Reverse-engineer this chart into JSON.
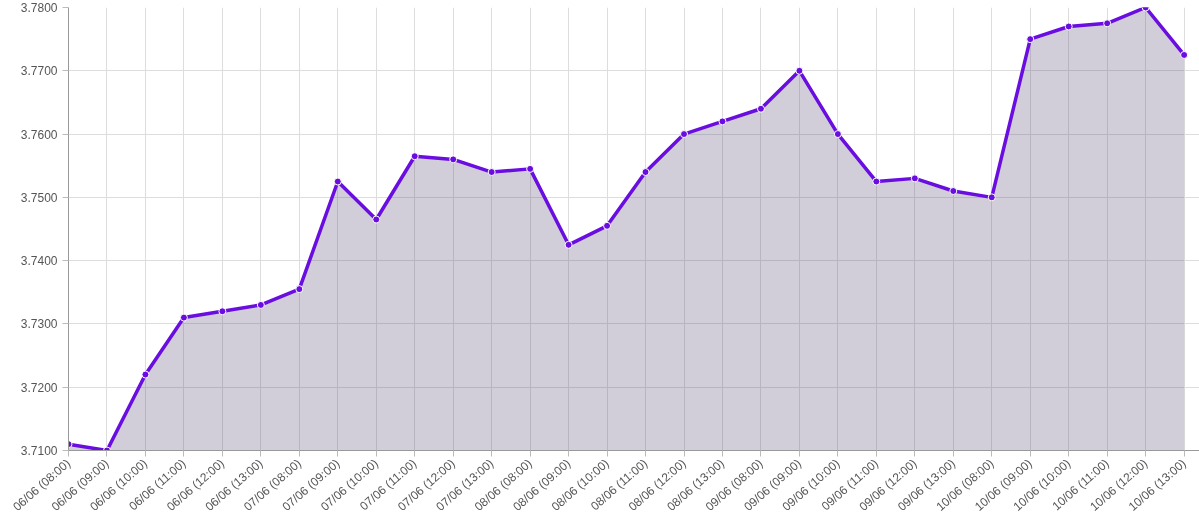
{
  "chart_data": {
    "type": "area",
    "categories": [
      "06/06 (08:00)",
      "06/06 (09:00)",
      "06/06 (10:00)",
      "06/06 (11:00)",
      "06/06 (12:00)",
      "06/06 (13:00)",
      "07/06 (08:00)",
      "07/06 (09:00)",
      "07/06 (10:00)",
      "07/06 (11:00)",
      "07/06 (12:00)",
      "07/06 (13:00)",
      "08/06 (08:00)",
      "08/06 (09:00)",
      "08/06 (10:00)",
      "08/06 (11:00)",
      "08/06 (12:00)",
      "08/06 (13:00)",
      "09/06 (08:00)",
      "09/06 (09:00)",
      "09/06 (10:00)",
      "09/06 (11:00)",
      "09/06 (12:00)",
      "09/06 (13:00)",
      "10/06 (08:00)",
      "10/06 (09:00)",
      "10/06 (10:00)",
      "10/06 (11:00)",
      "10/06 (12:00)",
      "10/06 (13:00)"
    ],
    "series": [
      {
        "color": "#6a0de0",
        "values": [
          3.711,
          3.71,
          3.722,
          3.731,
          3.732,
          3.733,
          3.7355,
          3.7525,
          3.7465,
          3.7565,
          3.756,
          3.754,
          3.7545,
          3.7425,
          3.7455,
          3.754,
          3.76,
          3.762,
          3.764,
          3.77,
          3.76,
          3.7525,
          3.753,
          3.751,
          3.75,
          3.775,
          3.777,
          3.7775,
          3.78,
          3.7725
        ]
      }
    ],
    "ylim": [
      3.71,
      3.78
    ],
    "yticks": [
      {
        "value": 3.71,
        "label": "3.7100"
      },
      {
        "value": 3.72,
        "label": "3.7200"
      },
      {
        "value": 3.73,
        "label": "3.7300"
      },
      {
        "value": 3.74,
        "label": "3.7400"
      },
      {
        "value": 3.75,
        "label": "3.7500"
      },
      {
        "value": 3.76,
        "label": "3.7600"
      },
      {
        "value": 3.77,
        "label": "3.7700"
      },
      {
        "value": 3.78,
        "label": "3.7800"
      }
    ],
    "grid": true,
    "marker": "circle",
    "line_style": "solid"
  }
}
